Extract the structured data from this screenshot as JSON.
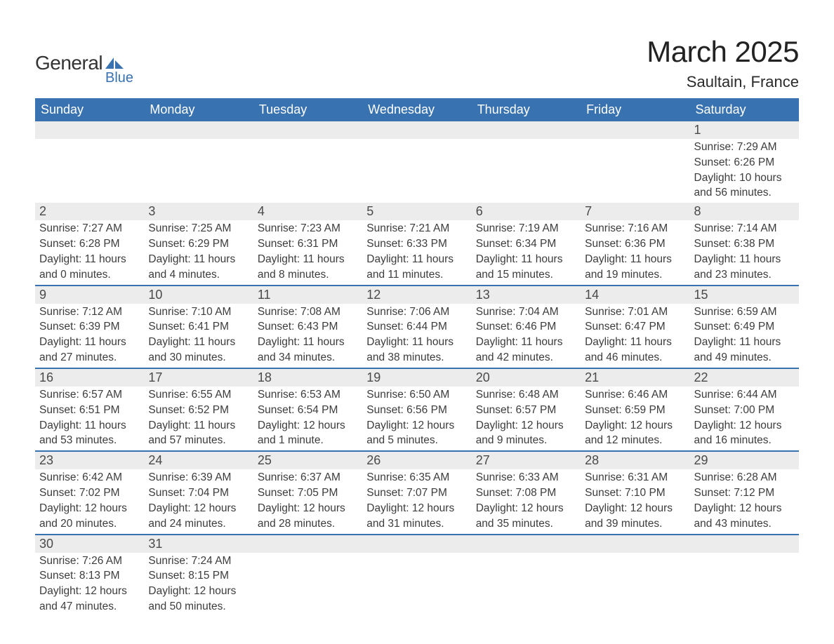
{
  "logo": {
    "general": "General",
    "blue": "Blue",
    "icon_color": "#3872b0"
  },
  "title": "March 2025",
  "location": "Saultain, France",
  "day_headers": [
    "Sunday",
    "Monday",
    "Tuesday",
    "Wednesday",
    "Thursday",
    "Friday",
    "Saturday"
  ],
  "header_bg": "#3872b0",
  "header_fg": "#ffffff",
  "daynum_bg": "#ececec",
  "row_border_color": "#3872b0",
  "text_color": "#3a3a3a",
  "weeks": [
    [
      {
        "empty": true
      },
      {
        "empty": true
      },
      {
        "empty": true
      },
      {
        "empty": true
      },
      {
        "empty": true
      },
      {
        "empty": true
      },
      {
        "day": "1",
        "sunrise": "Sunrise: 7:29 AM",
        "sunset": "Sunset: 6:26 PM",
        "daylight1": "Daylight: 10 hours",
        "daylight2": "and 56 minutes."
      }
    ],
    [
      {
        "day": "2",
        "sunrise": "Sunrise: 7:27 AM",
        "sunset": "Sunset: 6:28 PM",
        "daylight1": "Daylight: 11 hours",
        "daylight2": "and 0 minutes."
      },
      {
        "day": "3",
        "sunrise": "Sunrise: 7:25 AM",
        "sunset": "Sunset: 6:29 PM",
        "daylight1": "Daylight: 11 hours",
        "daylight2": "and 4 minutes."
      },
      {
        "day": "4",
        "sunrise": "Sunrise: 7:23 AM",
        "sunset": "Sunset: 6:31 PM",
        "daylight1": "Daylight: 11 hours",
        "daylight2": "and 8 minutes."
      },
      {
        "day": "5",
        "sunrise": "Sunrise: 7:21 AM",
        "sunset": "Sunset: 6:33 PM",
        "daylight1": "Daylight: 11 hours",
        "daylight2": "and 11 minutes."
      },
      {
        "day": "6",
        "sunrise": "Sunrise: 7:19 AM",
        "sunset": "Sunset: 6:34 PM",
        "daylight1": "Daylight: 11 hours",
        "daylight2": "and 15 minutes."
      },
      {
        "day": "7",
        "sunrise": "Sunrise: 7:16 AM",
        "sunset": "Sunset: 6:36 PM",
        "daylight1": "Daylight: 11 hours",
        "daylight2": "and 19 minutes."
      },
      {
        "day": "8",
        "sunrise": "Sunrise: 7:14 AM",
        "sunset": "Sunset: 6:38 PM",
        "daylight1": "Daylight: 11 hours",
        "daylight2": "and 23 minutes."
      }
    ],
    [
      {
        "day": "9",
        "sunrise": "Sunrise: 7:12 AM",
        "sunset": "Sunset: 6:39 PM",
        "daylight1": "Daylight: 11 hours",
        "daylight2": "and 27 minutes."
      },
      {
        "day": "10",
        "sunrise": "Sunrise: 7:10 AM",
        "sunset": "Sunset: 6:41 PM",
        "daylight1": "Daylight: 11 hours",
        "daylight2": "and 30 minutes."
      },
      {
        "day": "11",
        "sunrise": "Sunrise: 7:08 AM",
        "sunset": "Sunset: 6:43 PM",
        "daylight1": "Daylight: 11 hours",
        "daylight2": "and 34 minutes."
      },
      {
        "day": "12",
        "sunrise": "Sunrise: 7:06 AM",
        "sunset": "Sunset: 6:44 PM",
        "daylight1": "Daylight: 11 hours",
        "daylight2": "and 38 minutes."
      },
      {
        "day": "13",
        "sunrise": "Sunrise: 7:04 AM",
        "sunset": "Sunset: 6:46 PM",
        "daylight1": "Daylight: 11 hours",
        "daylight2": "and 42 minutes."
      },
      {
        "day": "14",
        "sunrise": "Sunrise: 7:01 AM",
        "sunset": "Sunset: 6:47 PM",
        "daylight1": "Daylight: 11 hours",
        "daylight2": "and 46 minutes."
      },
      {
        "day": "15",
        "sunrise": "Sunrise: 6:59 AM",
        "sunset": "Sunset: 6:49 PM",
        "daylight1": "Daylight: 11 hours",
        "daylight2": "and 49 minutes."
      }
    ],
    [
      {
        "day": "16",
        "sunrise": "Sunrise: 6:57 AM",
        "sunset": "Sunset: 6:51 PM",
        "daylight1": "Daylight: 11 hours",
        "daylight2": "and 53 minutes."
      },
      {
        "day": "17",
        "sunrise": "Sunrise: 6:55 AM",
        "sunset": "Sunset: 6:52 PM",
        "daylight1": "Daylight: 11 hours",
        "daylight2": "and 57 minutes."
      },
      {
        "day": "18",
        "sunrise": "Sunrise: 6:53 AM",
        "sunset": "Sunset: 6:54 PM",
        "daylight1": "Daylight: 12 hours",
        "daylight2": "and 1 minute."
      },
      {
        "day": "19",
        "sunrise": "Sunrise: 6:50 AM",
        "sunset": "Sunset: 6:56 PM",
        "daylight1": "Daylight: 12 hours",
        "daylight2": "and 5 minutes."
      },
      {
        "day": "20",
        "sunrise": "Sunrise: 6:48 AM",
        "sunset": "Sunset: 6:57 PM",
        "daylight1": "Daylight: 12 hours",
        "daylight2": "and 9 minutes."
      },
      {
        "day": "21",
        "sunrise": "Sunrise: 6:46 AM",
        "sunset": "Sunset: 6:59 PM",
        "daylight1": "Daylight: 12 hours",
        "daylight2": "and 12 minutes."
      },
      {
        "day": "22",
        "sunrise": "Sunrise: 6:44 AM",
        "sunset": "Sunset: 7:00 PM",
        "daylight1": "Daylight: 12 hours",
        "daylight2": "and 16 minutes."
      }
    ],
    [
      {
        "day": "23",
        "sunrise": "Sunrise: 6:42 AM",
        "sunset": "Sunset: 7:02 PM",
        "daylight1": "Daylight: 12 hours",
        "daylight2": "and 20 minutes."
      },
      {
        "day": "24",
        "sunrise": "Sunrise: 6:39 AM",
        "sunset": "Sunset: 7:04 PM",
        "daylight1": "Daylight: 12 hours",
        "daylight2": "and 24 minutes."
      },
      {
        "day": "25",
        "sunrise": "Sunrise: 6:37 AM",
        "sunset": "Sunset: 7:05 PM",
        "daylight1": "Daylight: 12 hours",
        "daylight2": "and 28 minutes."
      },
      {
        "day": "26",
        "sunrise": "Sunrise: 6:35 AM",
        "sunset": "Sunset: 7:07 PM",
        "daylight1": "Daylight: 12 hours",
        "daylight2": "and 31 minutes."
      },
      {
        "day": "27",
        "sunrise": "Sunrise: 6:33 AM",
        "sunset": "Sunset: 7:08 PM",
        "daylight1": "Daylight: 12 hours",
        "daylight2": "and 35 minutes."
      },
      {
        "day": "28",
        "sunrise": "Sunrise: 6:31 AM",
        "sunset": "Sunset: 7:10 PM",
        "daylight1": "Daylight: 12 hours",
        "daylight2": "and 39 minutes."
      },
      {
        "day": "29",
        "sunrise": "Sunrise: 6:28 AM",
        "sunset": "Sunset: 7:12 PM",
        "daylight1": "Daylight: 12 hours",
        "daylight2": "and 43 minutes."
      }
    ],
    [
      {
        "day": "30",
        "sunrise": "Sunrise: 7:26 AM",
        "sunset": "Sunset: 8:13 PM",
        "daylight1": "Daylight: 12 hours",
        "daylight2": "and 47 minutes."
      },
      {
        "day": "31",
        "sunrise": "Sunrise: 7:24 AM",
        "sunset": "Sunset: 8:15 PM",
        "daylight1": "Daylight: 12 hours",
        "daylight2": "and 50 minutes."
      },
      {
        "empty": true
      },
      {
        "empty": true
      },
      {
        "empty": true
      },
      {
        "empty": true
      },
      {
        "empty": true
      }
    ]
  ]
}
